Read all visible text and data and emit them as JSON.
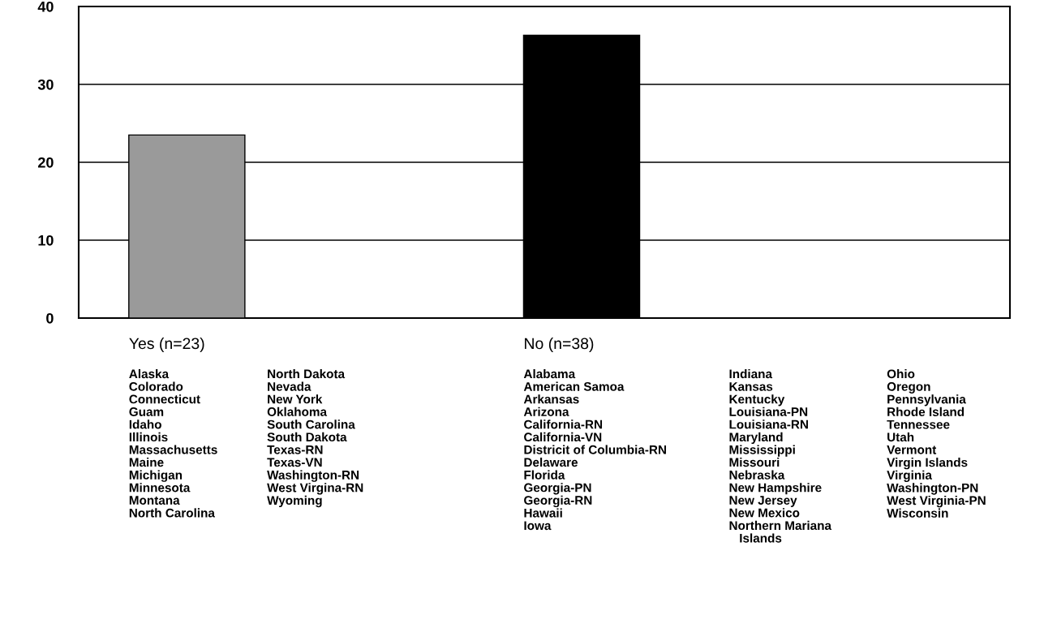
{
  "chart_data": {
    "type": "bar",
    "categories": [
      "Yes (n=23)",
      "No (n=38)"
    ],
    "values": [
      23.5,
      36.3
    ],
    "colors": [
      "#9a9a9a",
      "#000000"
    ],
    "ylim": [
      0,
      40
    ],
    "yticks": [
      0,
      10,
      20,
      30,
      40
    ],
    "grid": "y",
    "annotations": [
      "Alaska\nColorado\nConnecticut\nGuam\nIdaho\nIllinois\nMassachusetts\nMaine\nMichigan\nMinnesota\nMontana\nNorth Carolina",
      "North Dakota\nNevada\nNew York\nOklahoma\nSouth Carolina\nSouth Dakota\nTexas-RN\nTexas-VN\nWashington-RN\nWest Virgina-RN\nWyoming",
      "Alabama\nAmerican Samoa\nArkansas\nArizona\nCalifornia-RN\nCalifornia-VN\nDistricit of Columbia-RN\nDelaware\nFlorida\nGeorgia-PN\nGeorgia-RN\nHawaii\nIowa",
      "Indiana\nKansas\nKentucky\nLouisiana-PN\nLouisiana-RN\nMaryland\nMississippi\nMissouri\nNebraska\nNew Hampshire\nNew Jersey\nNew Mexico\nNorthern Mariana\n   Islands",
      "Ohio\nOregon\nPennsylvania\nRhode Island\nTennessee\nUtah\nVermont\nVirgin Islands\nVirginia\nWashington-PN\nWest Virginia-PN\nWisconsin"
    ]
  }
}
